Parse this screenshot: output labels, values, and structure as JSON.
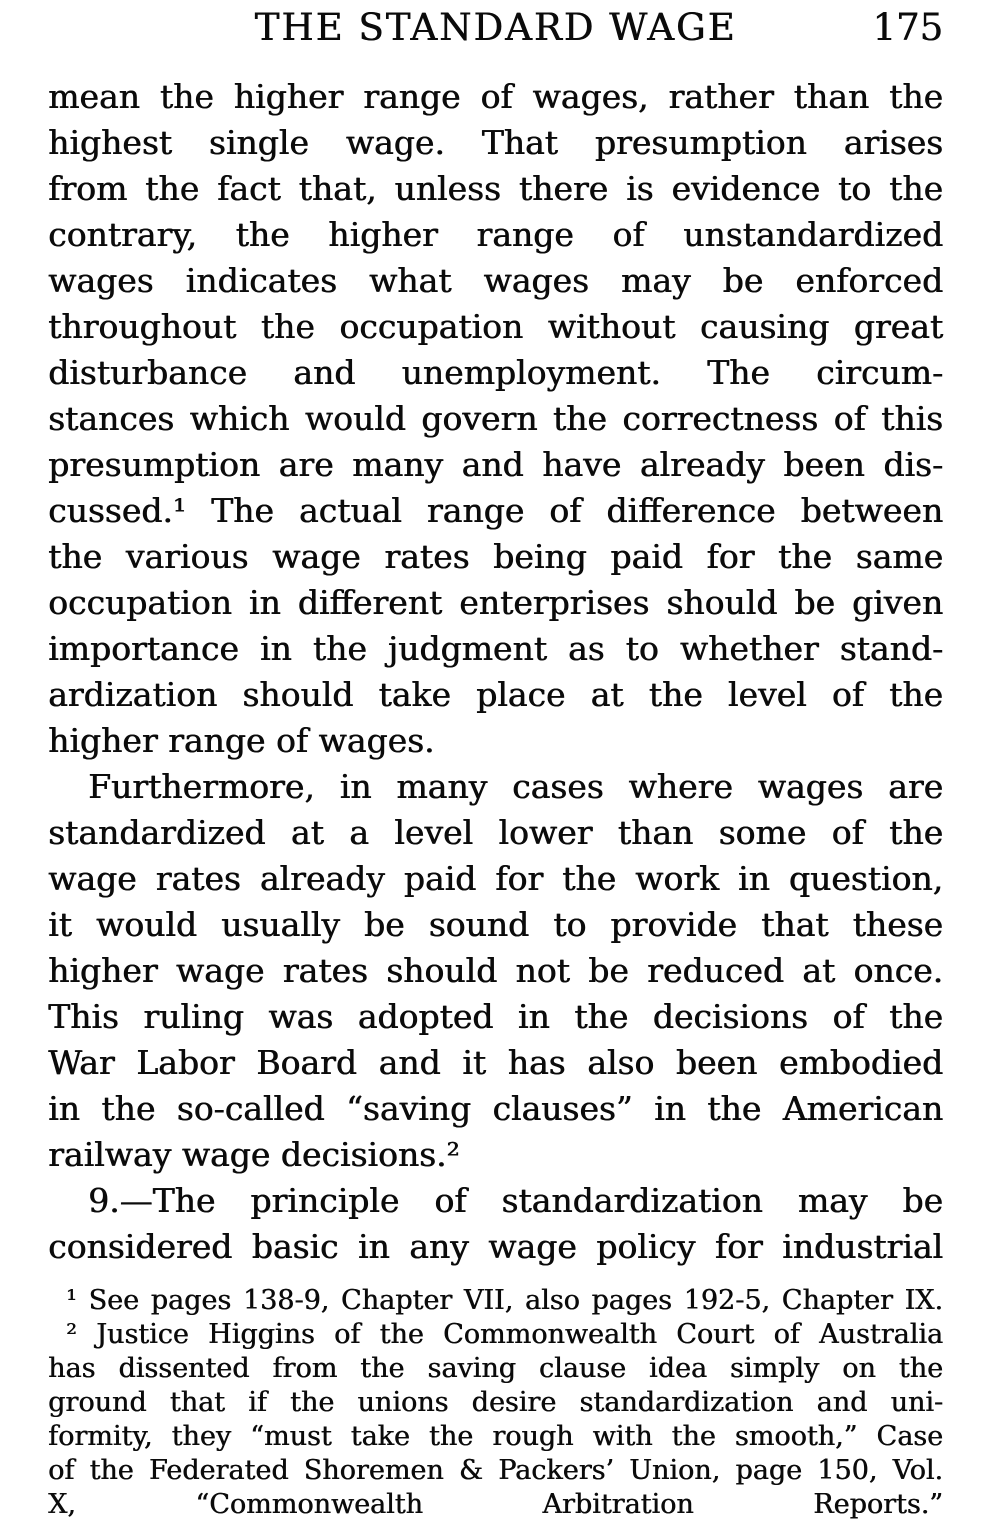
{
  "colors": {
    "ink": "#0b0b0b",
    "paper": "#ffffff"
  },
  "header": {
    "title": "THE STANDARD WAGE",
    "page_number": "175"
  },
  "paragraphs": [
    {
      "indent_first": false,
      "last_justified": false,
      "lines": [
        "mean the higher range of wages, rather than the",
        "highest single wage. That presumption arises",
        "from the fact that, unless there is evidence to the",
        "contrary, the higher range of unstandardized",
        "wages indicates what wages may be enforced",
        "throughout the occupation without causing great",
        "disturbance and unemployment. The circum-",
        "stances which would govern the correctness of this",
        "presumption are many and have already been dis-",
        "cussed.¹ The actual range of difference between",
        "the various wage rates being paid for the same",
        "occupation in different enterprises should be given",
        "importance in the judgment as to whether stand-",
        "ardization should take place at the level of the",
        "higher range of wages."
      ]
    },
    {
      "indent_first": true,
      "last_justified": false,
      "lines": [
        "Furthermore, in many cases where wages are",
        "standardized at a level lower than some of the",
        "wage rates already paid for the work in question,",
        "it would usually be sound to provide that these",
        "higher wage rates should not be reduced at once.",
        "This ruling was adopted in the decisions of the",
        "War Labor Board and it has also been embodied",
        "in the so-called “saving clauses” in the American",
        "railway wage decisions.²"
      ]
    },
    {
      "indent_first": true,
      "last_justified": true,
      "lines": [
        "9.—The principle of standardization may be",
        "considered basic in any wage policy for industrial"
      ]
    }
  ],
  "footnotes": [
    {
      "indent_first": true,
      "last_justified": true,
      "lines": [
        "¹ See pages 138-9, Chapter VII, also pages 192-5, Chapter IX."
      ]
    },
    {
      "indent_first": true,
      "last_justified": false,
      "lines": [
        "² Justice Higgins of the Commonwealth Court of Australia",
        "has dissented from the saving clause idea simply on the",
        "ground that if the unions desire standardization and uni-",
        "formity, they “must take the rough with the smooth,” Case",
        "of the Federated Shoremen & Packers’ Union, page 150, Vol.",
        "X, “Commonwealth Arbitration Reports.”"
      ]
    }
  ]
}
